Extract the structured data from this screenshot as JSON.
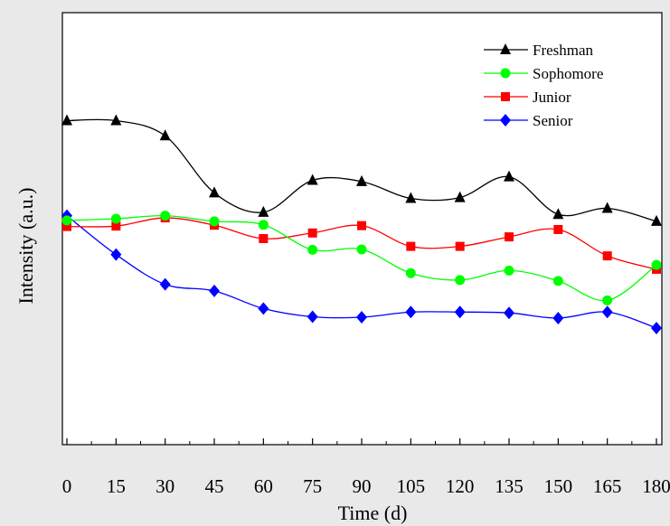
{
  "chart_data": {
    "type": "line",
    "title": "",
    "xlabel": "Time (d)",
    "ylabel": "Intensity (a.u.)",
    "x": [
      0,
      15,
      30,
      45,
      60,
      75,
      90,
      105,
      120,
      135,
      150,
      165,
      180
    ],
    "x_tick_labels": [
      "0",
      "15",
      "30",
      "45",
      "60",
      "75",
      "90",
      "105",
      "120",
      "135",
      "150",
      "165",
      "180"
    ],
    "xlim": [
      -1,
      180
    ],
    "ylim": [
      0,
      100
    ],
    "y_ticks_labeled": false,
    "grid": false,
    "legend_position": "top-right",
    "smoothed_lines": true,
    "series": [
      {
        "name": "Freshman",
        "marker": "triangle",
        "color": "#000000",
        "values": [
          75,
          75,
          71.5,
          58.3,
          53.8,
          61.2,
          60.9,
          57,
          57.2,
          62,
          53.3,
          54.7,
          51.7
        ]
      },
      {
        "name": "Sophomore",
        "marker": "circle",
        "color": "#00ff00",
        "values": [
          51.9,
          52.3,
          53,
          51.7,
          50.9,
          45.1,
          45.2,
          39.7,
          38.1,
          40.3,
          37.9,
          33.4,
          41.6
        ]
      },
      {
        "name": "Junior",
        "marker": "square",
        "color": "#ff0000",
        "values": [
          50.5,
          50.6,
          52.5,
          50.8,
          47.7,
          49,
          50.7,
          45.9,
          45.9,
          48.1,
          49.8,
          43.7,
          40.6
        ]
      },
      {
        "name": "Senior",
        "marker": "diamond",
        "color": "#0000ff",
        "values": [
          53,
          44,
          37.1,
          35.6,
          31.5,
          29.6,
          29.5,
          30.7,
          30.7,
          30.5,
          29.3,
          30.7,
          27
        ]
      }
    ]
  }
}
